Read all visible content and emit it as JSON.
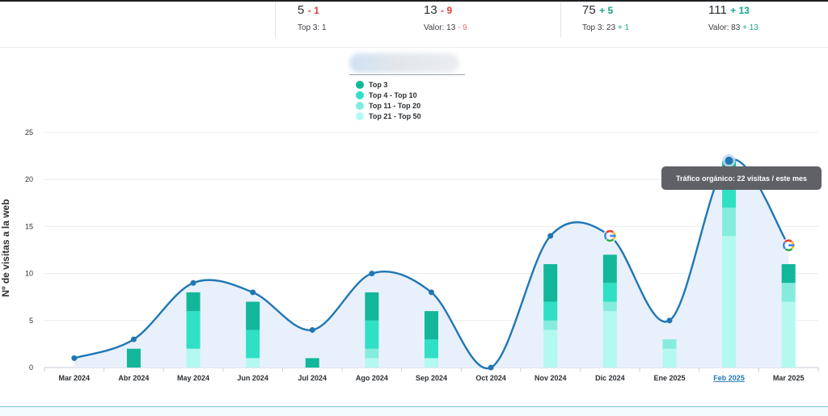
{
  "stats": [
    {
      "main": "5",
      "delta": "- 1",
      "sub": "Top 3: 1",
      "sub_delta": ""
    },
    {
      "main": "13",
      "delta": "- 9",
      "sub": "Valor: 13",
      "sub_delta": "- 9"
    },
    {
      "main": "75",
      "delta": "+ 5",
      "sub": "Top 3: 23",
      "sub_delta": "+ 1"
    },
    {
      "main": "111",
      "delta": "+ 13",
      "sub": "Valor: 83",
      "sub_delta": "+ 13"
    }
  ],
  "tooltip": "Tráfico orgánico: 22 visitas / este mes",
  "colors": {
    "top3": "#12b79a",
    "top4_10": "#2fe0c5",
    "top11_20": "#85ecdd",
    "top21_50": "#b3f9f0",
    "line": "#1f77b4",
    "area": "#e8f0fb"
  },
  "chart_data": {
    "type": "bar",
    "stacked": true,
    "title": "",
    "xlabel": "",
    "ylabel": "Nº de visitas a la web",
    "ylim": [
      0,
      25
    ],
    "yticks": [
      0,
      5,
      10,
      15,
      20,
      25
    ],
    "legend_position": "top-center",
    "grid": true,
    "categories": [
      "Mar 2024",
      "Abr 2024",
      "May 2024",
      "Jun 2024",
      "Jul 2024",
      "Ago 2024",
      "Sep 2024",
      "Oct 2024",
      "Nov 2024",
      "Dic 2024",
      "Ene 2025",
      "Feb 2025",
      "Mar 2025"
    ],
    "highlighted_category": "Feb 2025",
    "series": [
      {
        "name": "Top 3",
        "values": [
          0,
          2,
          2,
          3,
          1,
          3,
          3,
          0,
          4,
          3,
          0,
          3,
          2
        ]
      },
      {
        "name": "Top 4 - Top 10",
        "values": [
          0,
          0,
          4,
          3,
          0,
          3,
          2,
          0,
          2,
          2,
          0,
          2,
          0
        ]
      },
      {
        "name": "Top 11 - Top 20",
        "values": [
          0,
          0,
          0,
          0,
          0,
          1,
          0,
          0,
          1,
          1,
          1,
          3,
          2
        ]
      },
      {
        "name": "Top 21 - Top 50",
        "values": [
          0,
          0,
          2,
          1,
          0,
          1,
          1,
          0,
          4,
          6,
          2,
          14,
          7
        ]
      }
    ],
    "line_series": {
      "name": "Tráfico orgánico",
      "values": [
        1,
        3,
        9,
        8,
        4,
        10,
        8,
        0,
        14,
        14,
        5,
        22,
        13
      ]
    },
    "annotations": [
      {
        "category": "Dic 2024",
        "icon": "google-icon"
      },
      {
        "category": "Mar 2025",
        "icon": "google-icon"
      }
    ]
  }
}
